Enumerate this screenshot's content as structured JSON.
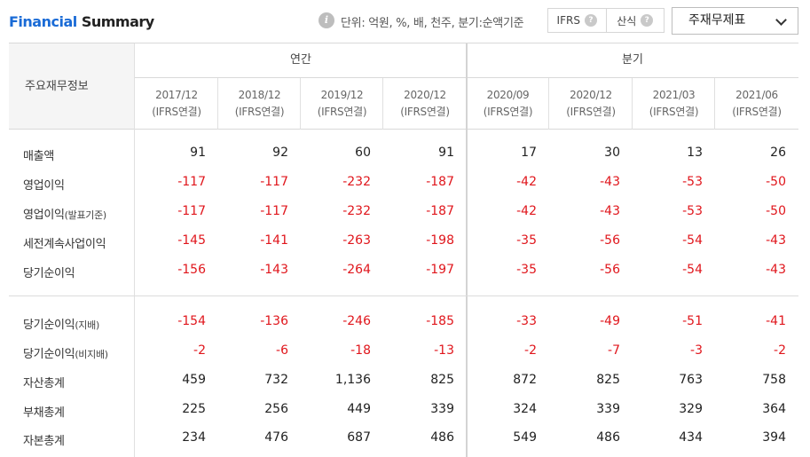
{
  "header": {
    "title_part1": "Financial",
    "title_part2": "Summary",
    "unit_text": "단위: 억원, %, 배, 천주, 분기:순액기준",
    "toggle": [
      {
        "label": "IFRS",
        "help": "?"
      },
      {
        "label": "산식",
        "help": "?"
      }
    ],
    "select_value": "주재무제표"
  },
  "table": {
    "row_header": "주요재무정보",
    "groups": [
      "연간",
      "분기"
    ],
    "columns": [
      {
        "period": "2017/12",
        "basis": "(IFRS연결)"
      },
      {
        "period": "2018/12",
        "basis": "(IFRS연결)"
      },
      {
        "period": "2019/12",
        "basis": "(IFRS연결)"
      },
      {
        "period": "2020/12",
        "basis": "(IFRS연결)"
      },
      {
        "period": "2020/09",
        "basis": "(IFRS연결)"
      },
      {
        "period": "2020/12",
        "basis": "(IFRS연결)"
      },
      {
        "period": "2021/03",
        "basis": "(IFRS연결)"
      },
      {
        "period": "2021/06",
        "basis": "(IFRS연결)"
      }
    ],
    "rows": [
      {
        "label": "매출액",
        "sub": "",
        "values": [
          "91",
          "92",
          "60",
          "91",
          "17",
          "30",
          "13",
          "26"
        ]
      },
      {
        "label": "영업이익",
        "sub": "",
        "values": [
          "-117",
          "-117",
          "-232",
          "-187",
          "-42",
          "-43",
          "-53",
          "-50"
        ]
      },
      {
        "label": "영업이익",
        "sub": "(발표기준)",
        "values": [
          "-117",
          "-117",
          "-232",
          "-187",
          "-42",
          "-43",
          "-53",
          "-50"
        ]
      },
      {
        "label": "세전계속사업이익",
        "sub": "",
        "values": [
          "-145",
          "-141",
          "-263",
          "-198",
          "-35",
          "-56",
          "-54",
          "-43"
        ]
      },
      {
        "label": "당기순이익",
        "sub": "",
        "values": [
          "-156",
          "-143",
          "-264",
          "-197",
          "-35",
          "-56",
          "-54",
          "-43"
        ]
      },
      {
        "label": "당기순이익",
        "sub": "(지배)",
        "values": [
          "-154",
          "-136",
          "-246",
          "-185",
          "-33",
          "-49",
          "-51",
          "-41"
        ]
      },
      {
        "label": "당기순이익",
        "sub": "(비지배)",
        "values": [
          "-2",
          "-6",
          "-18",
          "-13",
          "-2",
          "-7",
          "-3",
          "-2"
        ]
      },
      {
        "label": "자산총계",
        "sub": "",
        "values": [
          "459",
          "732",
          "1,136",
          "825",
          "872",
          "825",
          "763",
          "758"
        ]
      },
      {
        "label": "부채총계",
        "sub": "",
        "values": [
          "225",
          "256",
          "449",
          "339",
          "324",
          "339",
          "329",
          "364"
        ]
      },
      {
        "label": "자본총계",
        "sub": "",
        "values": [
          "234",
          "476",
          "687",
          "486",
          "549",
          "486",
          "434",
          "394"
        ]
      }
    ]
  }
}
